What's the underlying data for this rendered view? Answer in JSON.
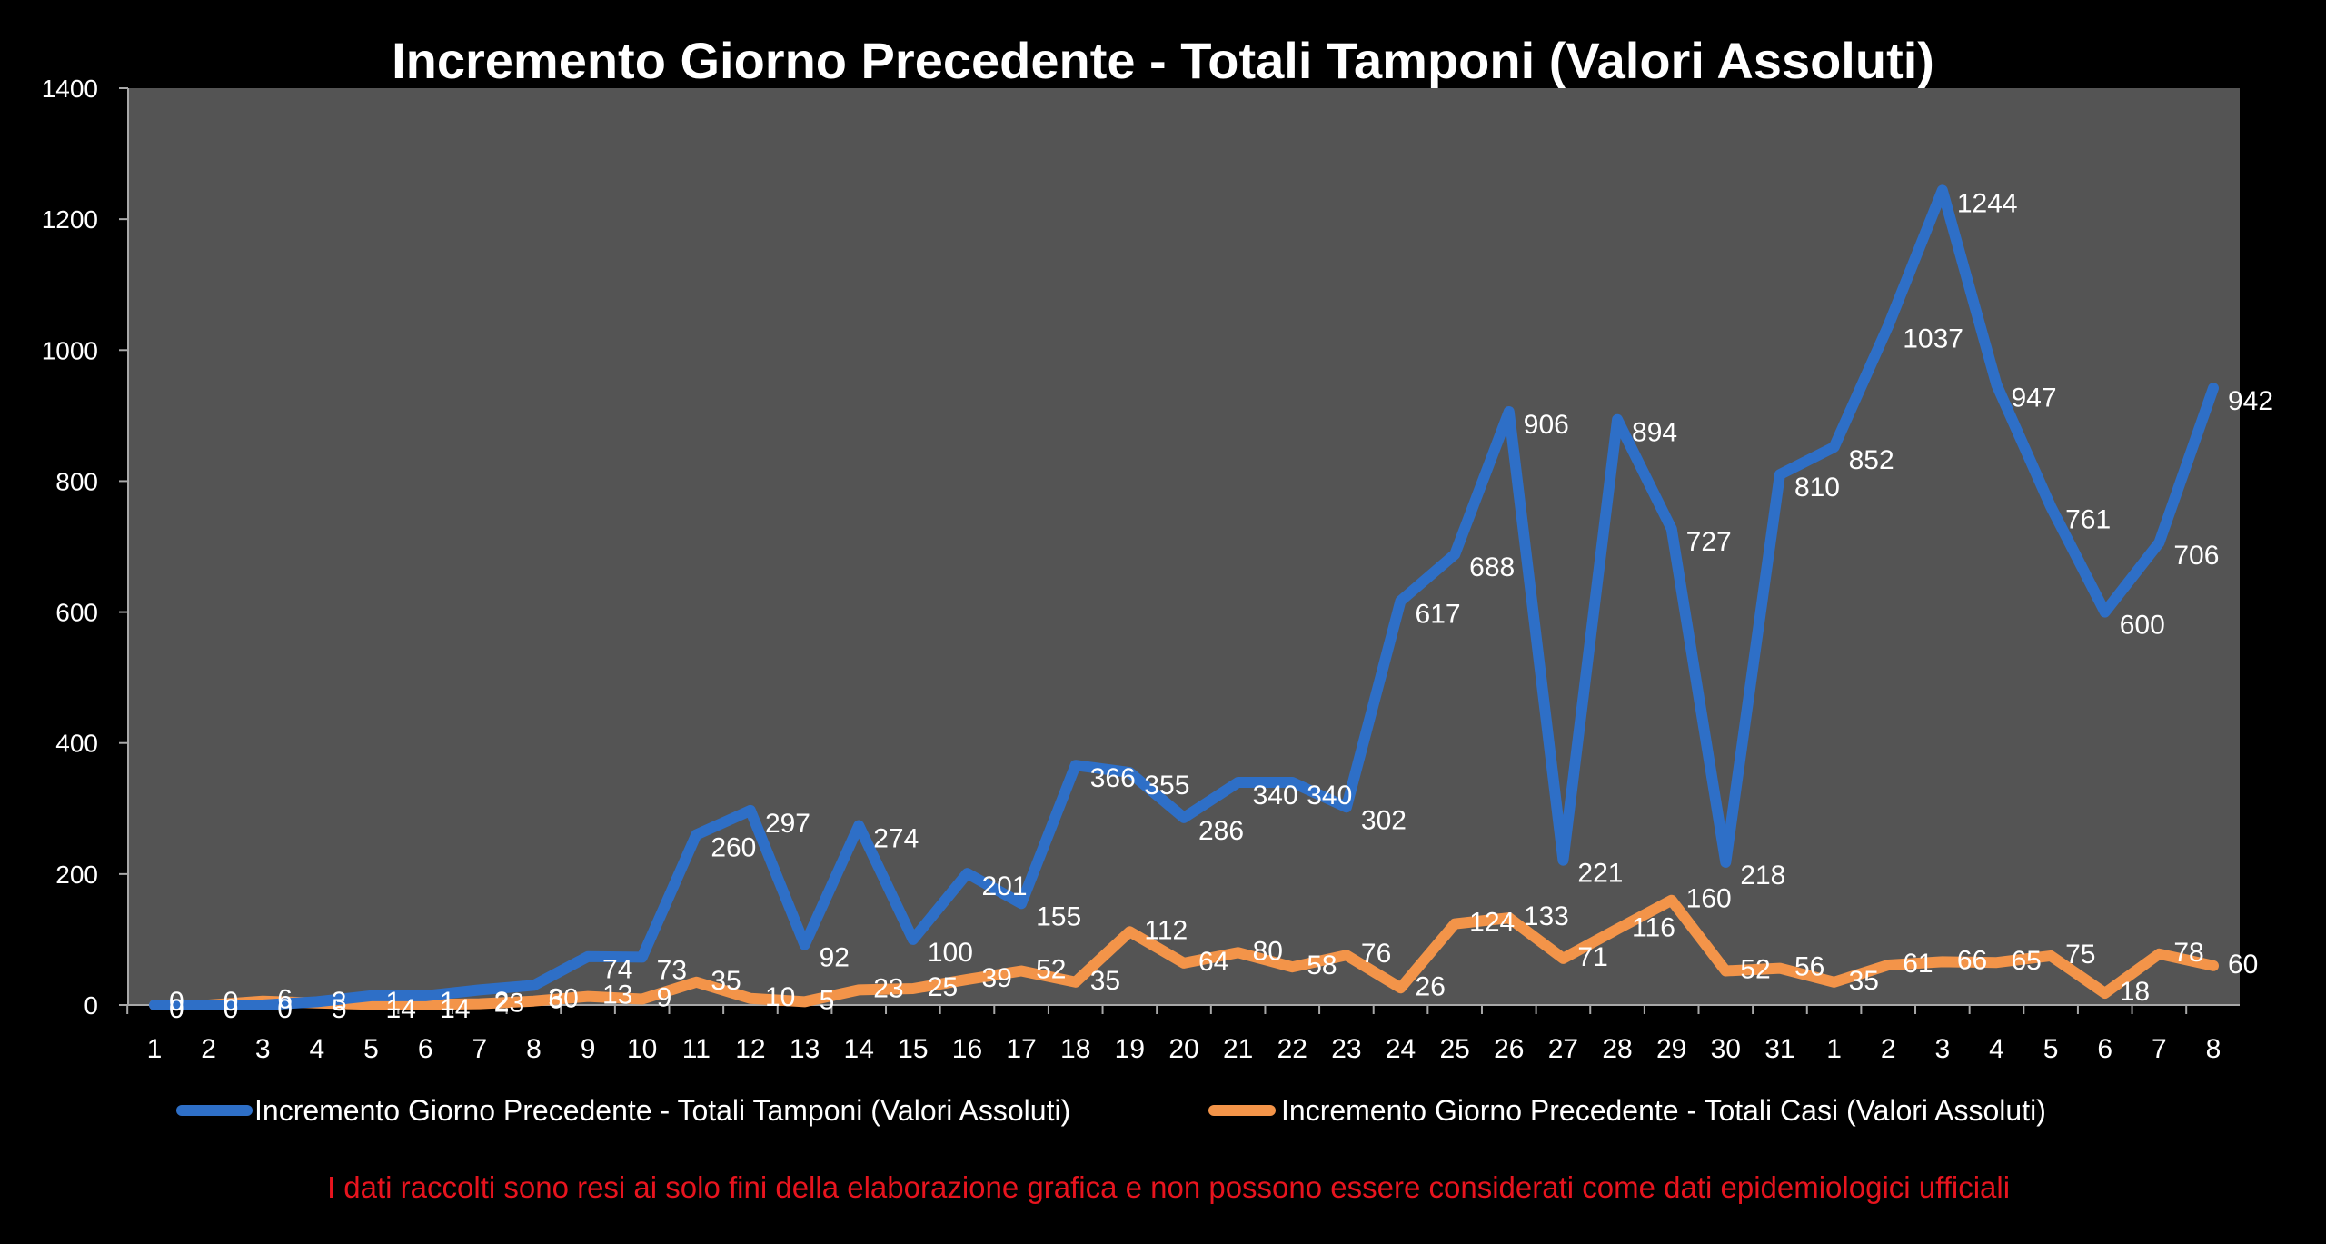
{
  "chart_data": {
    "type": "line",
    "title": "Incremento Giorno Precedente - Totali Tamponi (Valori Assoluti)",
    "xlabel": "",
    "ylabel": "",
    "ylim": [
      0,
      1400
    ],
    "yticks": [
      0,
      200,
      400,
      600,
      800,
      1000,
      1200,
      1400
    ],
    "grid": false,
    "legend_position": "bottom",
    "plot_background": "#545454",
    "categories": [
      "1",
      "2",
      "3",
      "4",
      "5",
      "6",
      "7",
      "8",
      "9",
      "10",
      "11",
      "12",
      "13",
      "14",
      "15",
      "16",
      "17",
      "18",
      "19",
      "20",
      "21",
      "22",
      "23",
      "24",
      "25",
      "26",
      "27",
      "28",
      "29",
      "30",
      "31",
      "1",
      "2",
      "3",
      "4",
      "5",
      "6",
      "7",
      "8"
    ],
    "series": [
      {
        "name": "Incremento Giorno Precedente - Totali Tamponi (Valori Assoluti)",
        "color": "#2E6FC7",
        "values": [
          0,
          0,
          0,
          5,
          14,
          14,
          23,
          30,
          74,
          73,
          260,
          297,
          92,
          274,
          100,
          201,
          155,
          366,
          355,
          286,
          340,
          340,
          302,
          617,
          688,
          906,
          221,
          894,
          727,
          218,
          810,
          852,
          1037,
          1244,
          947,
          761,
          600,
          706,
          942
        ]
      },
      {
        "name": "Incremento Giorno Precedente - Totali Casi (Valori Assoluti)",
        "color": "#F39449",
        "values": [
          0,
          0,
          6,
          3,
          1,
          1,
          2,
          6,
          13,
          9,
          35,
          10,
          5,
          23,
          25,
          39,
          52,
          35,
          112,
          64,
          80,
          58,
          76,
          26,
          124,
          133,
          71,
          116,
          160,
          52,
          56,
          35,
          61,
          66,
          65,
          75,
          18,
          78,
          60
        ]
      }
    ],
    "disclaimer": {
      "text": "I dati raccolti  sono resi ai solo fini della elaborazione grafica e non possono essere considerati come dati epidemiologici  ufficiali",
      "color": "#E8141E"
    }
  }
}
